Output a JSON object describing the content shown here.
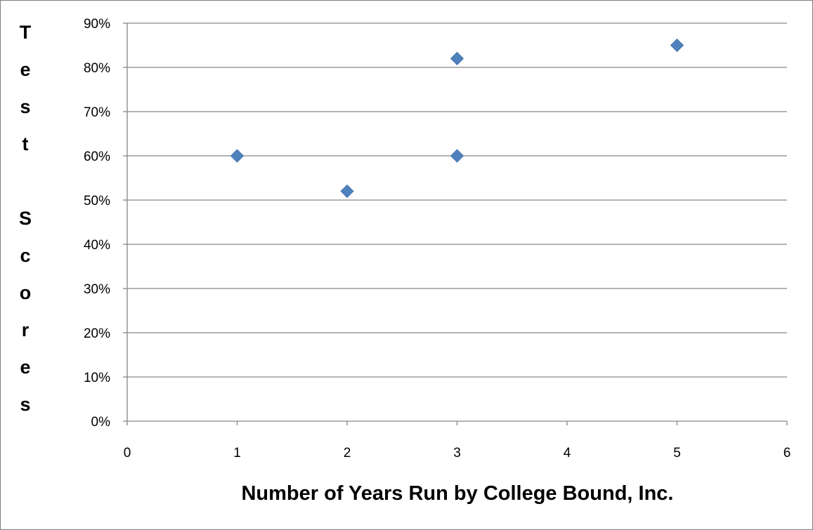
{
  "chart_data": {
    "type": "scatter",
    "title": "",
    "xlabel": "Number of Years Run by College Bound, Inc.",
    "ylabel": "Test Scores",
    "xlim": [
      0,
      6
    ],
    "ylim": [
      0,
      0.9
    ],
    "x_ticks": [
      "0",
      "1",
      "2",
      "3",
      "4",
      "5",
      "6"
    ],
    "y_ticks": [
      "0%",
      "10%",
      "20%",
      "30%",
      "40%",
      "50%",
      "60%",
      "70%",
      "80%",
      "90%"
    ],
    "grid": true,
    "legend": "none",
    "marker": "diamond",
    "series": [
      {
        "color": "#4f81bd",
        "points": [
          {
            "x": 1,
            "y": 0.6
          },
          {
            "x": 2,
            "y": 0.52
          },
          {
            "x": 3,
            "y": 0.82
          },
          {
            "x": 3,
            "y": 0.6
          },
          {
            "x": 5,
            "y": 0.85
          }
        ]
      }
    ]
  }
}
